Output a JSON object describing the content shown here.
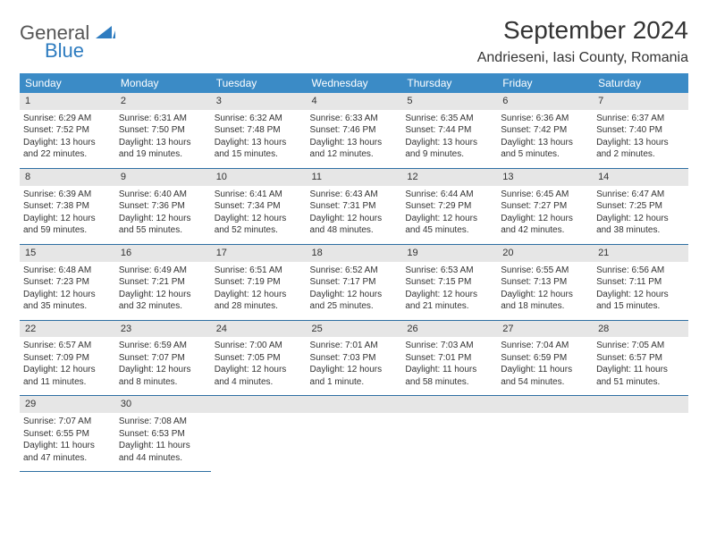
{
  "logo": {
    "general": "General",
    "blue": "Blue"
  },
  "title": "September 2024",
  "location": "Andrieseni, Iasi County, Romania",
  "colors": {
    "header_bg": "#3b8bc6",
    "header_text": "#ffffff",
    "daynum_bg": "#e6e6e6",
    "border": "#2e6fa3",
    "logo_blue": "#2e7cc0",
    "text": "#333333"
  },
  "day_headers": [
    "Sunday",
    "Monday",
    "Tuesday",
    "Wednesday",
    "Thursday",
    "Friday",
    "Saturday"
  ],
  "weeks": [
    {
      "nums": [
        "1",
        "2",
        "3",
        "4",
        "5",
        "6",
        "7"
      ],
      "cells": [
        {
          "sr": "Sunrise: 6:29 AM",
          "ss": "Sunset: 7:52 PM",
          "d1": "Daylight: 13 hours",
          "d2": "and 22 minutes."
        },
        {
          "sr": "Sunrise: 6:31 AM",
          "ss": "Sunset: 7:50 PM",
          "d1": "Daylight: 13 hours",
          "d2": "and 19 minutes."
        },
        {
          "sr": "Sunrise: 6:32 AM",
          "ss": "Sunset: 7:48 PM",
          "d1": "Daylight: 13 hours",
          "d2": "and 15 minutes."
        },
        {
          "sr": "Sunrise: 6:33 AM",
          "ss": "Sunset: 7:46 PM",
          "d1": "Daylight: 13 hours",
          "d2": "and 12 minutes."
        },
        {
          "sr": "Sunrise: 6:35 AM",
          "ss": "Sunset: 7:44 PM",
          "d1": "Daylight: 13 hours",
          "d2": "and 9 minutes."
        },
        {
          "sr": "Sunrise: 6:36 AM",
          "ss": "Sunset: 7:42 PM",
          "d1": "Daylight: 13 hours",
          "d2": "and 5 minutes."
        },
        {
          "sr": "Sunrise: 6:37 AM",
          "ss": "Sunset: 7:40 PM",
          "d1": "Daylight: 13 hours",
          "d2": "and 2 minutes."
        }
      ]
    },
    {
      "nums": [
        "8",
        "9",
        "10",
        "11",
        "12",
        "13",
        "14"
      ],
      "cells": [
        {
          "sr": "Sunrise: 6:39 AM",
          "ss": "Sunset: 7:38 PM",
          "d1": "Daylight: 12 hours",
          "d2": "and 59 minutes."
        },
        {
          "sr": "Sunrise: 6:40 AM",
          "ss": "Sunset: 7:36 PM",
          "d1": "Daylight: 12 hours",
          "d2": "and 55 minutes."
        },
        {
          "sr": "Sunrise: 6:41 AM",
          "ss": "Sunset: 7:34 PM",
          "d1": "Daylight: 12 hours",
          "d2": "and 52 minutes."
        },
        {
          "sr": "Sunrise: 6:43 AM",
          "ss": "Sunset: 7:31 PM",
          "d1": "Daylight: 12 hours",
          "d2": "and 48 minutes."
        },
        {
          "sr": "Sunrise: 6:44 AM",
          "ss": "Sunset: 7:29 PM",
          "d1": "Daylight: 12 hours",
          "d2": "and 45 minutes."
        },
        {
          "sr": "Sunrise: 6:45 AM",
          "ss": "Sunset: 7:27 PM",
          "d1": "Daylight: 12 hours",
          "d2": "and 42 minutes."
        },
        {
          "sr": "Sunrise: 6:47 AM",
          "ss": "Sunset: 7:25 PM",
          "d1": "Daylight: 12 hours",
          "d2": "and 38 minutes."
        }
      ]
    },
    {
      "nums": [
        "15",
        "16",
        "17",
        "18",
        "19",
        "20",
        "21"
      ],
      "cells": [
        {
          "sr": "Sunrise: 6:48 AM",
          "ss": "Sunset: 7:23 PM",
          "d1": "Daylight: 12 hours",
          "d2": "and 35 minutes."
        },
        {
          "sr": "Sunrise: 6:49 AM",
          "ss": "Sunset: 7:21 PM",
          "d1": "Daylight: 12 hours",
          "d2": "and 32 minutes."
        },
        {
          "sr": "Sunrise: 6:51 AM",
          "ss": "Sunset: 7:19 PM",
          "d1": "Daylight: 12 hours",
          "d2": "and 28 minutes."
        },
        {
          "sr": "Sunrise: 6:52 AM",
          "ss": "Sunset: 7:17 PM",
          "d1": "Daylight: 12 hours",
          "d2": "and 25 minutes."
        },
        {
          "sr": "Sunrise: 6:53 AM",
          "ss": "Sunset: 7:15 PM",
          "d1": "Daylight: 12 hours",
          "d2": "and 21 minutes."
        },
        {
          "sr": "Sunrise: 6:55 AM",
          "ss": "Sunset: 7:13 PM",
          "d1": "Daylight: 12 hours",
          "d2": "and 18 minutes."
        },
        {
          "sr": "Sunrise: 6:56 AM",
          "ss": "Sunset: 7:11 PM",
          "d1": "Daylight: 12 hours",
          "d2": "and 15 minutes."
        }
      ]
    },
    {
      "nums": [
        "22",
        "23",
        "24",
        "25",
        "26",
        "27",
        "28"
      ],
      "cells": [
        {
          "sr": "Sunrise: 6:57 AM",
          "ss": "Sunset: 7:09 PM",
          "d1": "Daylight: 12 hours",
          "d2": "and 11 minutes."
        },
        {
          "sr": "Sunrise: 6:59 AM",
          "ss": "Sunset: 7:07 PM",
          "d1": "Daylight: 12 hours",
          "d2": "and 8 minutes."
        },
        {
          "sr": "Sunrise: 7:00 AM",
          "ss": "Sunset: 7:05 PM",
          "d1": "Daylight: 12 hours",
          "d2": "and 4 minutes."
        },
        {
          "sr": "Sunrise: 7:01 AM",
          "ss": "Sunset: 7:03 PM",
          "d1": "Daylight: 12 hours",
          "d2": "and 1 minute."
        },
        {
          "sr": "Sunrise: 7:03 AM",
          "ss": "Sunset: 7:01 PM",
          "d1": "Daylight: 11 hours",
          "d2": "and 58 minutes."
        },
        {
          "sr": "Sunrise: 7:04 AM",
          "ss": "Sunset: 6:59 PM",
          "d1": "Daylight: 11 hours",
          "d2": "and 54 minutes."
        },
        {
          "sr": "Sunrise: 7:05 AM",
          "ss": "Sunset: 6:57 PM",
          "d1": "Daylight: 11 hours",
          "d2": "and 51 minutes."
        }
      ]
    },
    {
      "nums": [
        "29",
        "30",
        "",
        "",
        "",
        "",
        ""
      ],
      "cells": [
        {
          "sr": "Sunrise: 7:07 AM",
          "ss": "Sunset: 6:55 PM",
          "d1": "Daylight: 11 hours",
          "d2": "and 47 minutes."
        },
        {
          "sr": "Sunrise: 7:08 AM",
          "ss": "Sunset: 6:53 PM",
          "d1": "Daylight: 11 hours",
          "d2": "and 44 minutes."
        },
        null,
        null,
        null,
        null,
        null
      ]
    }
  ]
}
